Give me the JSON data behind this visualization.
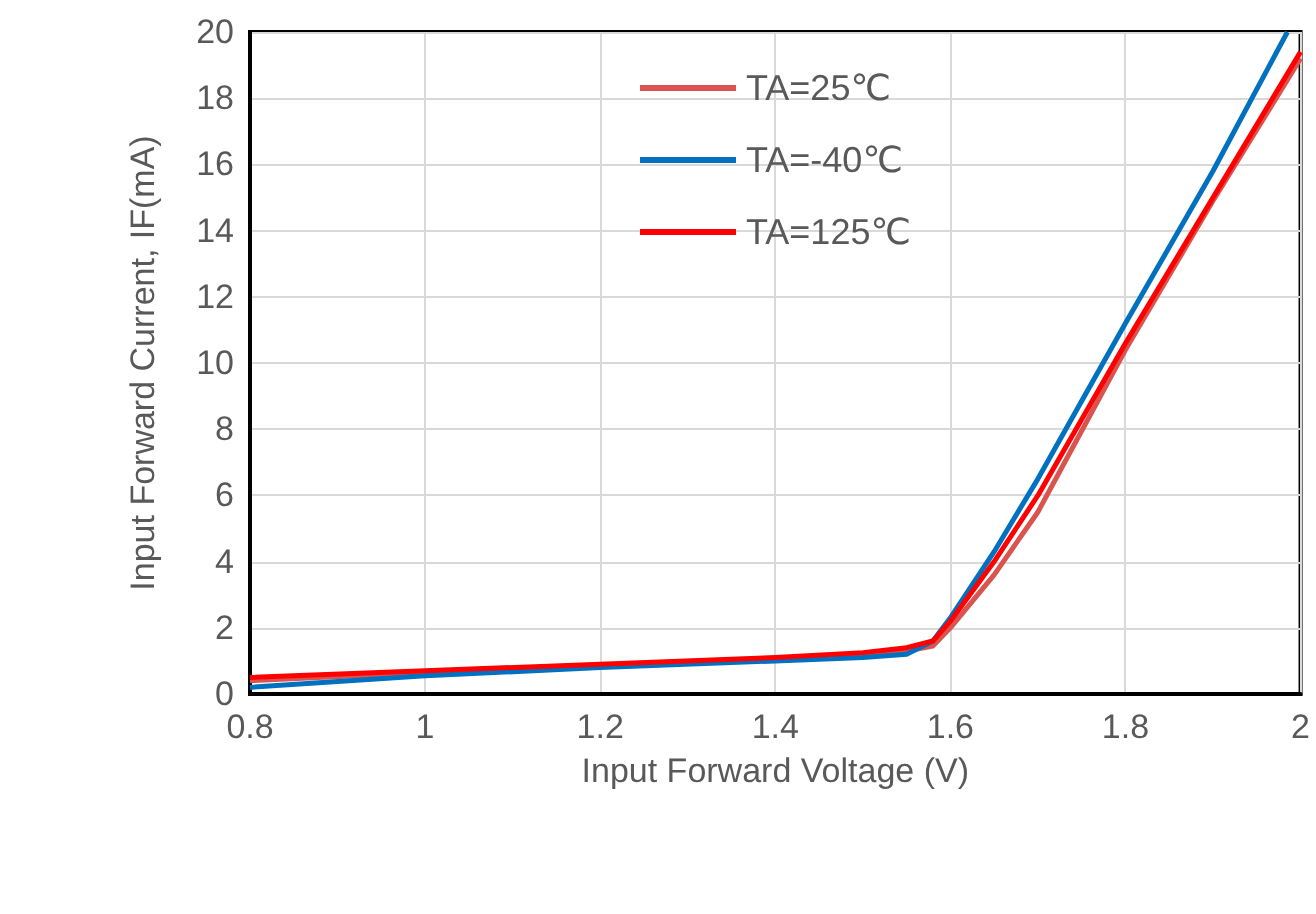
{
  "chart_data": {
    "type": "line",
    "xlabel": "Input Forward Voltage (V)",
    "ylabel": "Input Forward Current, IF(mA)",
    "xlim": [
      0.8,
      2
    ],
    "xticks": [
      0.8,
      1,
      1.2,
      1.4,
      1.6,
      1.8,
      2
    ],
    "ylim": [
      0,
      20
    ],
    "yticks": [
      0,
      2,
      4,
      6,
      8,
      10,
      12,
      14,
      16,
      18,
      20
    ],
    "grid": true,
    "legend": "top",
    "marker": "none",
    "line_style": "solid",
    "series": [
      {
        "name": "TA=25℃",
        "color": "#d9534f",
        "x": [
          0.8,
          1.0,
          1.2,
          1.4,
          1.5,
          1.55,
          1.58,
          1.6,
          1.65,
          1.7,
          1.8,
          1.9,
          2.0
        ],
        "values": [
          0.4,
          0.65,
          0.85,
          1.05,
          1.2,
          1.3,
          1.45,
          2.0,
          3.6,
          5.5,
          10.4,
          14.9,
          19.2
        ]
      },
      {
        "name": "TA=-40℃",
        "color": "#0070c0",
        "x": [
          0.8,
          1.0,
          1.2,
          1.4,
          1.5,
          1.55,
          1.58,
          1.6,
          1.65,
          1.7,
          1.8,
          1.9,
          1.985
        ],
        "values": [
          0.2,
          0.55,
          0.8,
          1.0,
          1.1,
          1.2,
          1.6,
          2.3,
          4.3,
          6.5,
          11.2,
          15.8,
          20
        ]
      },
      {
        "name": "TA=125℃",
        "color": "#ff0000",
        "x": [
          0.8,
          1.0,
          1.2,
          1.4,
          1.5,
          1.55,
          1.58,
          1.6,
          1.65,
          1.7,
          1.8,
          1.9,
          2.0
        ],
        "values": [
          0.5,
          0.7,
          0.9,
          1.1,
          1.25,
          1.4,
          1.6,
          2.2,
          4.0,
          6.0,
          10.6,
          15.0,
          19.4
        ]
      }
    ]
  }
}
